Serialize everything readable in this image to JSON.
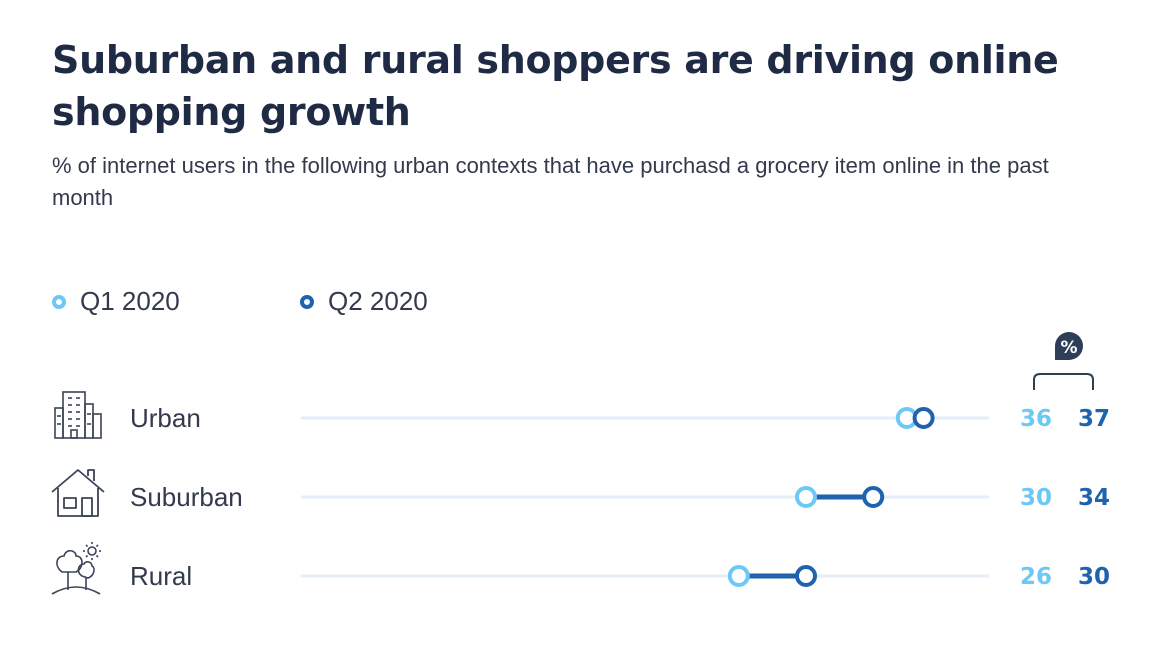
{
  "title": "Suburban and rural shoppers are driving online shopping growth",
  "subtitle": "% of internet users in the following urban contexts that have purchasd a grocery item online in the past month",
  "unit_badge": "%",
  "colors": {
    "q1": "#6cc8f5",
    "q2": "#1f62ad",
    "track": "#e6eef8",
    "text": "#1f2a44"
  },
  "icons": [
    "city-buildings-icon",
    "house-icon",
    "trees-sun-icon"
  ],
  "chart_data": {
    "type": "dumbbell",
    "title": "Suburban and rural shoppers are driving online shopping growth",
    "subtitle": "% of internet users in the following urban contexts that have purchasd a grocery item online in the past month",
    "unit": "%",
    "categories": [
      "Urban",
      "Suburban",
      "Rural"
    ],
    "series": [
      {
        "name": "Q1 2020",
        "values": [
          36,
          30,
          26
        ]
      },
      {
        "name": "Q2 2020",
        "values": [
          37,
          34,
          30
        ]
      }
    ],
    "legend": "top-left",
    "grid": false
  }
}
